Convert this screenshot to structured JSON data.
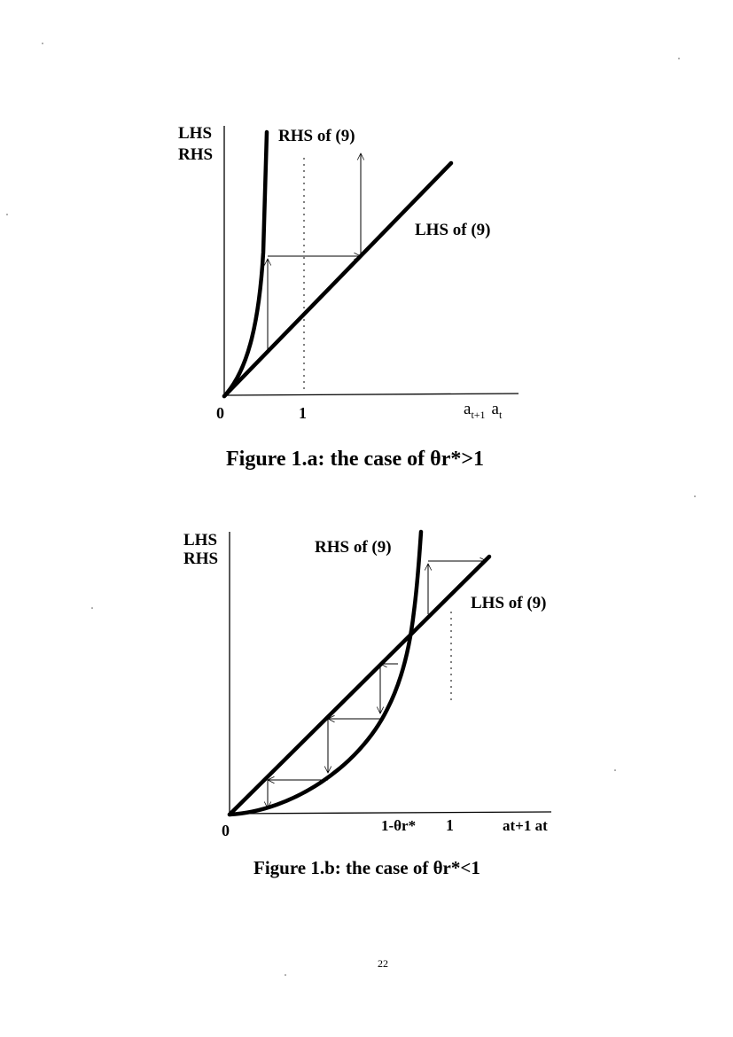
{
  "figure_a": {
    "y_axis_label_1": "LHS",
    "y_axis_label_2": "RHS",
    "rhs_curve_label": "RHS of (9)",
    "lhs_line_label": "LHS of (9)",
    "origin_tick": "0",
    "one_tick": "1",
    "x_axis_label_1": "a",
    "x_axis_label_1_sub": "t+1",
    "x_axis_label_2": "a",
    "x_axis_label_2_sub": "t",
    "caption": "Figure 1.a: the case of θr*>1"
  },
  "figure_b": {
    "y_axis_label_1": "LHS",
    "y_axis_label_2": "RHS",
    "rhs_curve_label": "RHS of (9)",
    "lhs_line_label": "LHS of (9)",
    "origin_tick": "0",
    "fixed_point_tick": "1-θr*",
    "one_tick": "1",
    "x_axis_label": "at+1 at",
    "caption": "Figure 1.b: the case of θr*<1"
  },
  "page_number": "22"
}
